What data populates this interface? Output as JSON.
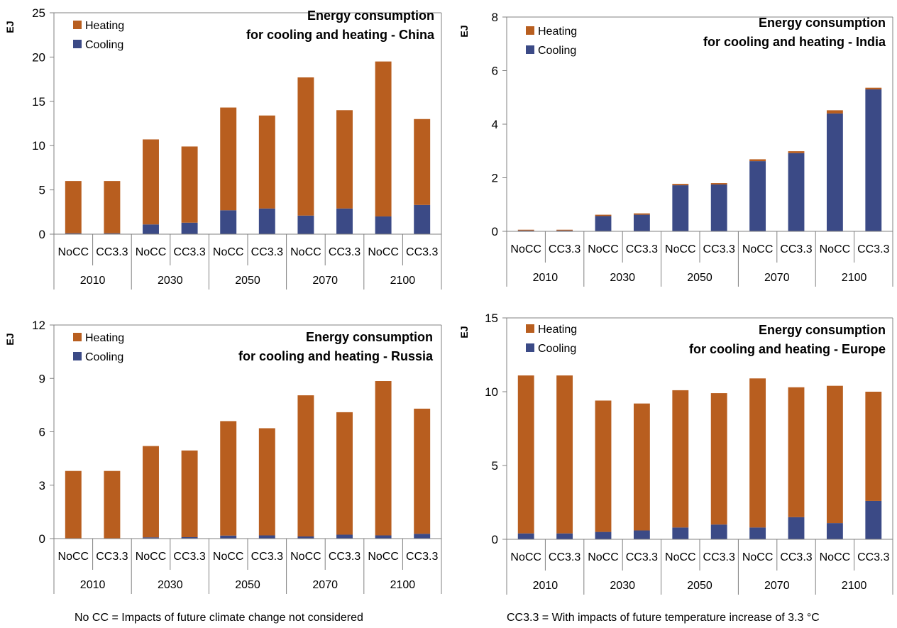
{
  "colors": {
    "heating": "#B85E1F",
    "cooling": "#3B4A86",
    "axis": "#808080"
  },
  "footnotes": {
    "left": "No CC = Impacts of future climate change not considered",
    "right": "CC3.3 = With impacts of future temperature increase of 3.3 °C"
  },
  "chart_data": [
    {
      "type": "bar",
      "stacked": true,
      "title_lines": [
        "Energy consumption",
        "for cooling and heating - China"
      ],
      "ylabel": "EJ",
      "ylim": [
        0,
        25
      ],
      "yticks": [
        "0",
        "5",
        "10",
        "15",
        "20",
        "25"
      ],
      "years": [
        "2010",
        "2030",
        "2050",
        "2070",
        "2100"
      ],
      "scenarios": [
        "NoCC",
        "CC3.3"
      ],
      "legend": [
        "Heating",
        "Cooling"
      ],
      "legend_position": "top-left",
      "series": [
        {
          "name": "Cooling",
          "values": [
            0.1,
            0.1,
            1.1,
            1.3,
            2.7,
            2.9,
            2.1,
            2.9,
            2.0,
            3.3
          ]
        },
        {
          "name": "Heating",
          "values": [
            5.9,
            5.9,
            9.6,
            8.6,
            11.6,
            10.5,
            15.6,
            11.1,
            17.5,
            9.7
          ]
        }
      ]
    },
    {
      "type": "bar",
      "stacked": true,
      "title_lines": [
        "Energy consumption",
        "for cooling and heating - India"
      ],
      "ylabel": "EJ",
      "ylim": [
        0,
        8
      ],
      "yticks": [
        "0",
        "2",
        "4",
        "6",
        "8"
      ],
      "years": [
        "2010",
        "2030",
        "2050",
        "2070",
        "2100"
      ],
      "scenarios": [
        "NoCC",
        "CC3.3"
      ],
      "legend": [
        "Heating",
        "Cooling"
      ],
      "legend_position": "top-left",
      "series": [
        {
          "name": "Cooling",
          "values": [
            0.03,
            0.03,
            0.57,
            0.62,
            1.72,
            1.75,
            2.62,
            2.92,
            4.4,
            5.3
          ]
        },
        {
          "name": "Heating",
          "values": [
            0.03,
            0.03,
            0.05,
            0.05,
            0.05,
            0.05,
            0.07,
            0.07,
            0.12,
            0.06
          ]
        }
      ]
    },
    {
      "type": "bar",
      "stacked": true,
      "title_lines": [
        "Energy consumption",
        "for cooling and heating - Russia"
      ],
      "ylabel": "EJ",
      "ylim": [
        0,
        12
      ],
      "yticks": [
        "0",
        "3",
        "6",
        "9",
        "12"
      ],
      "years": [
        "2010",
        "2030",
        "2050",
        "2070",
        "2100"
      ],
      "scenarios": [
        "NoCC",
        "CC3.3"
      ],
      "legend": [
        "Heating",
        "Cooling"
      ],
      "legend_position": "top-left",
      "series": [
        {
          "name": "Cooling",
          "values": [
            0.02,
            0.02,
            0.07,
            0.08,
            0.17,
            0.18,
            0.12,
            0.22,
            0.18,
            0.27
          ]
        },
        {
          "name": "Heating",
          "values": [
            3.78,
            3.78,
            5.13,
            4.87,
            6.43,
            6.02,
            7.93,
            6.88,
            8.67,
            7.03
          ]
        }
      ]
    },
    {
      "type": "bar",
      "stacked": true,
      "title_lines": [
        "Energy consumption",
        "for cooling and heating - Europe"
      ],
      "ylabel": "EJ",
      "ylim": [
        0,
        15
      ],
      "yticks": [
        "0",
        "5",
        "10",
        "15"
      ],
      "years": [
        "2010",
        "2030",
        "2050",
        "2070",
        "2100"
      ],
      "scenarios": [
        "NoCC",
        "CC3.3"
      ],
      "legend": [
        "Heating",
        "Cooling"
      ],
      "legend_position": "top-left",
      "series": [
        {
          "name": "Cooling",
          "values": [
            0.4,
            0.4,
            0.5,
            0.6,
            0.8,
            1.0,
            0.8,
            1.5,
            1.1,
            2.6
          ]
        },
        {
          "name": "Heating",
          "values": [
            10.7,
            10.7,
            8.9,
            8.6,
            9.3,
            8.9,
            10.1,
            8.8,
            9.3,
            7.4
          ]
        }
      ]
    }
  ]
}
